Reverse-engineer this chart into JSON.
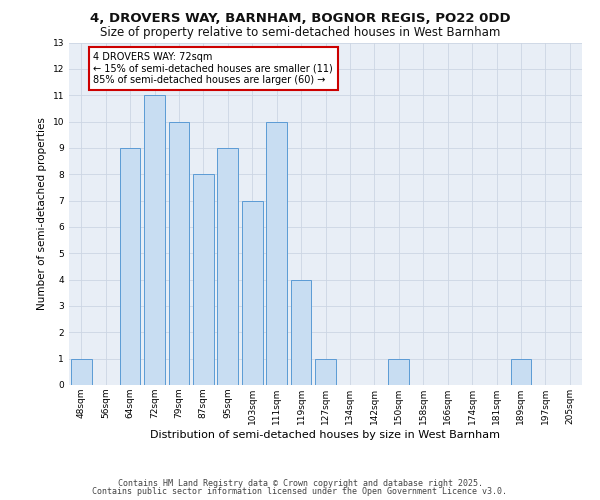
{
  "title_line1": "4, DROVERS WAY, BARNHAM, BOGNOR REGIS, PO22 0DD",
  "title_line2": "Size of property relative to semi-detached houses in West Barnham",
  "xlabel": "Distribution of semi-detached houses by size in West Barnham",
  "ylabel": "Number of semi-detached properties",
  "categories": [
    "48sqm",
    "56sqm",
    "64sqm",
    "72sqm",
    "79sqm",
    "87sqm",
    "95sqm",
    "103sqm",
    "111sqm",
    "119sqm",
    "127sqm",
    "134sqm",
    "142sqm",
    "150sqm",
    "158sqm",
    "166sqm",
    "174sqm",
    "181sqm",
    "189sqm",
    "197sqm",
    "205sqm"
  ],
  "values": [
    1,
    0,
    9,
    11,
    10,
    8,
    9,
    7,
    10,
    4,
    1,
    0,
    0,
    1,
    0,
    0,
    0,
    0,
    1,
    0,
    0
  ],
  "bar_color": "#c8ddf2",
  "bar_edge_color": "#5b9bd5",
  "ylim": [
    0,
    13
  ],
  "yticks": [
    0,
    1,
    2,
    3,
    4,
    5,
    6,
    7,
    8,
    9,
    10,
    11,
    12,
    13
  ],
  "annotation_title": "4 DROVERS WAY: 72sqm",
  "annotation_line1": "← 15% of semi-detached houses are smaller (11)",
  "annotation_line2": "85% of semi-detached houses are larger (60) →",
  "annotation_box_color": "#ffffff",
  "annotation_box_edge": "#cc0000",
  "grid_color": "#ccd5e3",
  "background_color": "#e8eef6",
  "footer_line1": "Contains HM Land Registry data © Crown copyright and database right 2025.",
  "footer_line2": "Contains public sector information licensed under the Open Government Licence v3.0.",
  "title_fontsize": 9.5,
  "subtitle_fontsize": 8.5,
  "xlabel_fontsize": 8,
  "ylabel_fontsize": 7.5,
  "tick_fontsize": 6.5,
  "ann_fontsize": 7,
  "footer_fontsize": 6
}
